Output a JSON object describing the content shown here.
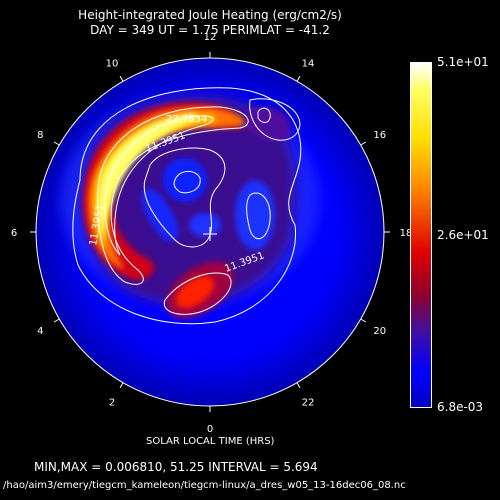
{
  "title": "Height-integrated Joule Heating (erg/cm2/s)",
  "subtitle": "DAY = 349  UT =  1.75  PERIMLAT = -41.2",
  "x_axis_label": "SOLAR LOCAL TIME (HRS)",
  "hour_labels": [
    {
      "h": "0"
    },
    {
      "h": "2"
    },
    {
      "h": "4"
    },
    {
      "h": "6"
    },
    {
      "h": "8"
    },
    {
      "h": "10"
    },
    {
      "h": "12"
    },
    {
      "h": "14"
    },
    {
      "h": "16"
    },
    {
      "h": "18"
    },
    {
      "h": "20"
    },
    {
      "h": "22"
    }
  ],
  "colorbar": {
    "max_label": "5.1e+01",
    "mid_label": "2.6e+01",
    "min_label": "6.8e-03"
  },
  "contour_labels": [
    "11.3951",
    "11.3951",
    "11.3951",
    "22.7834"
  ],
  "footer": {
    "stats": "MIN,MAX =   0.006810,    51.25 INTERVAL =     5.694",
    "path": "/hao/aim3/emery/tiegcm_kameleon/tiegcm-linux/a_dres_w05_13-16dec06_08.nc"
  },
  "colors": {
    "background": "#000000",
    "low": "#0000ff",
    "high": "#ffffff"
  }
}
